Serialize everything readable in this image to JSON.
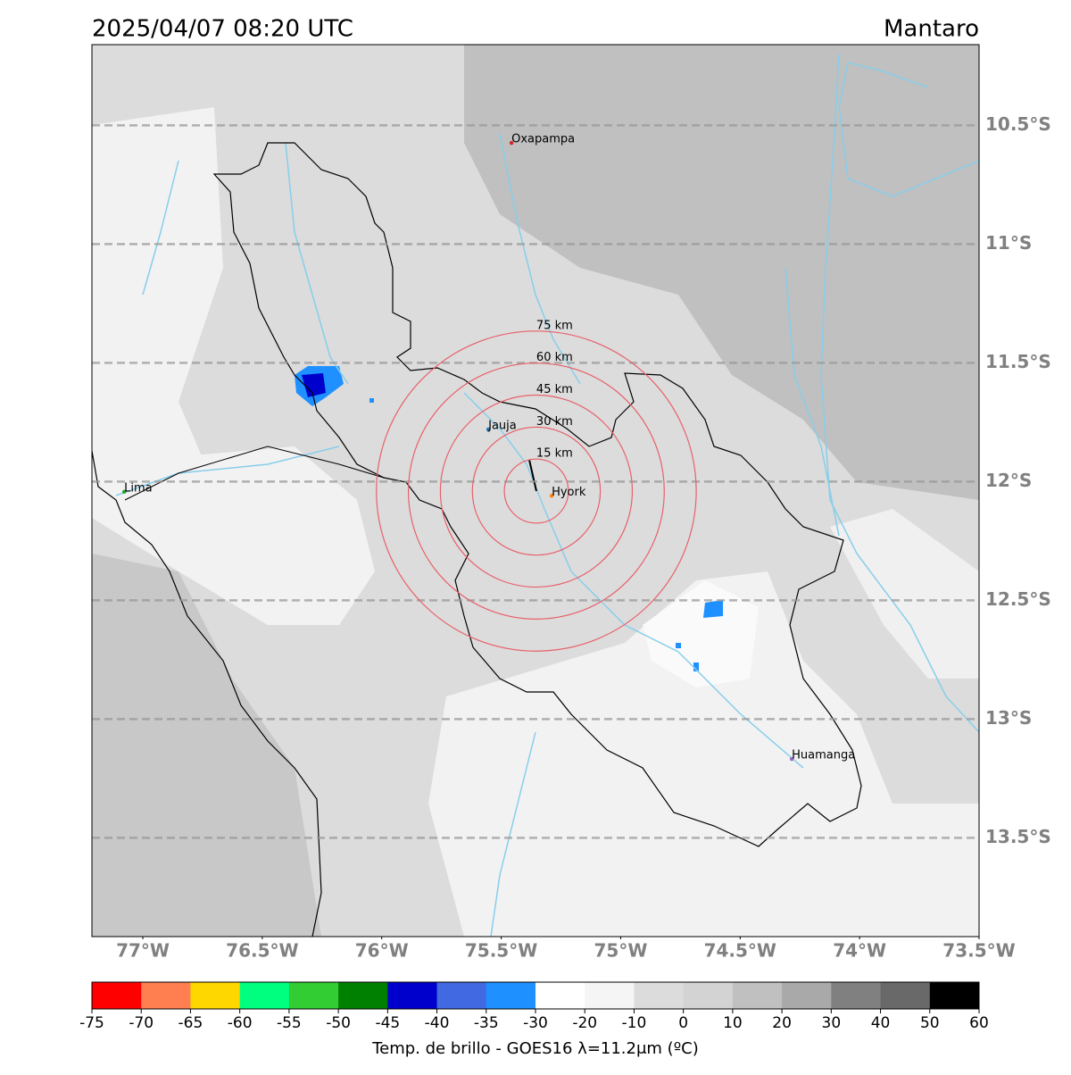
{
  "header": {
    "title": "2025/04/07 08:20 UTC",
    "region": "Mantaro"
  },
  "map": {
    "xlim": [
      -77.213,
      -73.5
    ],
    "ylim": [
      -13.916,
      -10.16
    ],
    "lon_ticks": [
      {
        "value": -77,
        "label": "77°W"
      },
      {
        "value": -76.5,
        "label": "76.5°W"
      },
      {
        "value": -76,
        "label": "76°W"
      },
      {
        "value": -75.5,
        "label": "75.5°W"
      },
      {
        "value": -75,
        "label": "75°W"
      },
      {
        "value": -74.5,
        "label": "74.5°W"
      },
      {
        "value": -74,
        "label": "74°W"
      },
      {
        "value": -73.5,
        "label": "73.5°W"
      }
    ],
    "lat_ticks": [
      {
        "value": -10.5,
        "label": "10.5°S"
      },
      {
        "value": -11,
        "label": "11°S"
      },
      {
        "value": -11.5,
        "label": "11.5°S"
      },
      {
        "value": -12,
        "label": "12°S"
      },
      {
        "value": -12.5,
        "label": "12.5°S"
      },
      {
        "value": -13,
        "label": "13°S"
      },
      {
        "value": -13.5,
        "label": "13.5°S"
      }
    ],
    "cities": [
      {
        "name": "Oxapampa",
        "lon": -75.457,
        "lat": -10.574,
        "color": "#d62728"
      },
      {
        "name": "Jauja",
        "lon": -75.554,
        "lat": -11.78,
        "color": "#1f77b4"
      },
      {
        "name": "Hyork",
        "lon": -75.289,
        "lat": -12.06,
        "color": "#ff7f0e"
      },
      {
        "name": "Lima",
        "lon": -77.078,
        "lat": -12.043,
        "color": "#2ca02c"
      },
      {
        "name": "Huamanga",
        "lon": -74.284,
        "lat": -13.168,
        "color": "#9467bd"
      }
    ],
    "rings": {
      "center": [
        -75.353,
        -12.04
      ],
      "color": "#e8606a",
      "radii": [
        {
          "value": 15,
          "label": "15 km"
        },
        {
          "value": 30,
          "label": "30 km"
        },
        {
          "value": 45,
          "label": "45 km"
        },
        {
          "value": 60,
          "label": "60 km"
        },
        {
          "value": 75,
          "label": "75 km"
        }
      ]
    }
  },
  "colorbar": {
    "ticks": [
      -75,
      -70,
      -65,
      -60,
      -55,
      -50,
      -45,
      -40,
      -35,
      -30,
      -20,
      -10,
      0,
      10,
      20,
      30,
      40,
      50,
      60
    ],
    "colors": [
      "#ff0000",
      "#ff7f50",
      "#ffd700",
      "#00ff7f",
      "#32cd32",
      "#008000",
      "#0000cd",
      "#4169e1",
      "#1e90ff",
      "#ffffff",
      "#f5f5f5",
      "#dcdcdc",
      "#d3d3d3",
      "#c0c0c0",
      "#a9a9a9",
      "#808080",
      "#696969",
      "#000000"
    ],
    "label": "Temp. de brillo - GOES16 λ=11.2μm (ºC)"
  }
}
